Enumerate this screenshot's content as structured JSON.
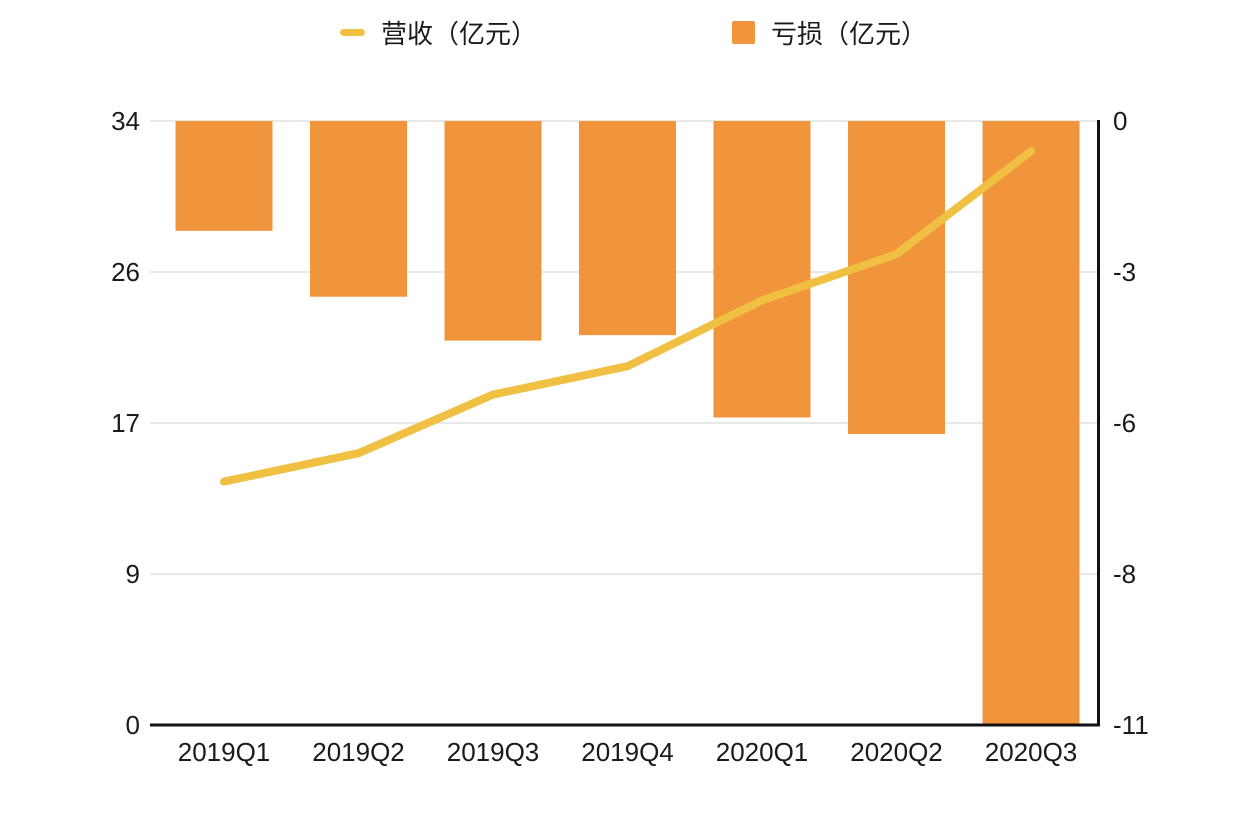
{
  "legend": [
    {
      "label": "营收（亿元）",
      "type": "line"
    },
    {
      "label": "亏损（亿元）",
      "type": "bar"
    }
  ],
  "colors": {
    "line": "#F0C043",
    "bar": "#F0953C",
    "grid": "#D9D9D9",
    "axis": "#111111",
    "text": "#1A1A1A"
  },
  "chart_data": {
    "type": "combo-bar-line",
    "categories": [
      "2019Q1",
      "2019Q2",
      "2019Q3",
      "2019Q4",
      "2020Q1",
      "2020Q2",
      "2020Q3"
    ],
    "series": [
      {
        "name": "营收（亿元）",
        "type": "line",
        "axis": "left",
        "color": "#F0C043",
        "values": [
          13.7,
          15.3,
          18.6,
          20.2,
          23.9,
          26.5,
          32.3
        ]
      },
      {
        "name": "亏损（亿元）",
        "type": "bar",
        "axis": "right",
        "color": "#F0953C",
        "values": [
          -2.0,
          -3.2,
          -4.0,
          -3.9,
          -5.4,
          -5.7,
          -11.0
        ]
      }
    ],
    "axis_left": {
      "min": 0,
      "max": 34,
      "ticks": [
        {
          "pos": 0,
          "label": "0"
        },
        {
          "pos": 8.5,
          "label": "9"
        },
        {
          "pos": 17,
          "label": "17"
        },
        {
          "pos": 25.5,
          "label": "26"
        },
        {
          "pos": 34,
          "label": "34"
        }
      ]
    },
    "axis_right": {
      "min": -11,
      "max": 0,
      "ticks": [
        {
          "pos": 0,
          "label": "0"
        },
        {
          "pos": -2.75,
          "label": "-3"
        },
        {
          "pos": -5.5,
          "label": "-6"
        },
        {
          "pos": -8.25,
          "label": "-8"
        },
        {
          "pos": -11,
          "label": "-11"
        }
      ]
    },
    "grid": true,
    "legend_position": "top"
  }
}
